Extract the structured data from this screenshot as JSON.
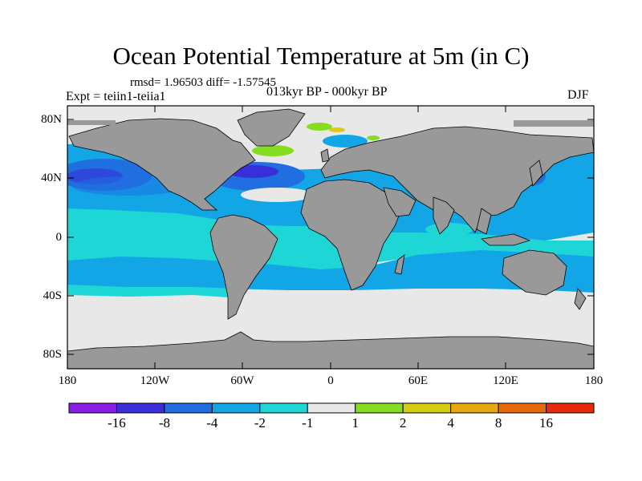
{
  "title": "Ocean Potential Temperature at 5m (in C)",
  "stats": "rmsd= 1.96503 diff= -1.57545",
  "experiment": "Expt = teiin1-teiia1",
  "period": "013kyr BP - 000kyr BP",
  "season": "DJF",
  "lat_labels": [
    "80N",
    "40N",
    "0",
    "40S",
    "80S"
  ],
  "lon_labels": [
    "180",
    "120W",
    "60W",
    "0",
    "60E",
    "120E",
    "180"
  ],
  "colorbar": {
    "labels": [
      "-16",
      "-8",
      "-4",
      "-2",
      "-1",
      "1",
      "2",
      "4",
      "8",
      "16"
    ],
    "colors": [
      "#8a1ee6",
      "#3a2ed8",
      "#1f6fe0",
      "#12a6e6",
      "#1fd6d6",
      "#e8e8e8",
      "#86dc1e",
      "#d8cc12",
      "#e6a80e",
      "#e66a0c",
      "#e62a0a"
    ]
  },
  "colors": {
    "land": "#999999",
    "no_change": "#e8e8e8",
    "cool_light": "#1fd6d6",
    "cool_medium": "#12a6e6",
    "cool_strong": "#1f6fe0",
    "cool_extreme": "#3a2ed8",
    "warm_light": "#86dc1e",
    "warm_medium": "#d8cc12"
  }
}
